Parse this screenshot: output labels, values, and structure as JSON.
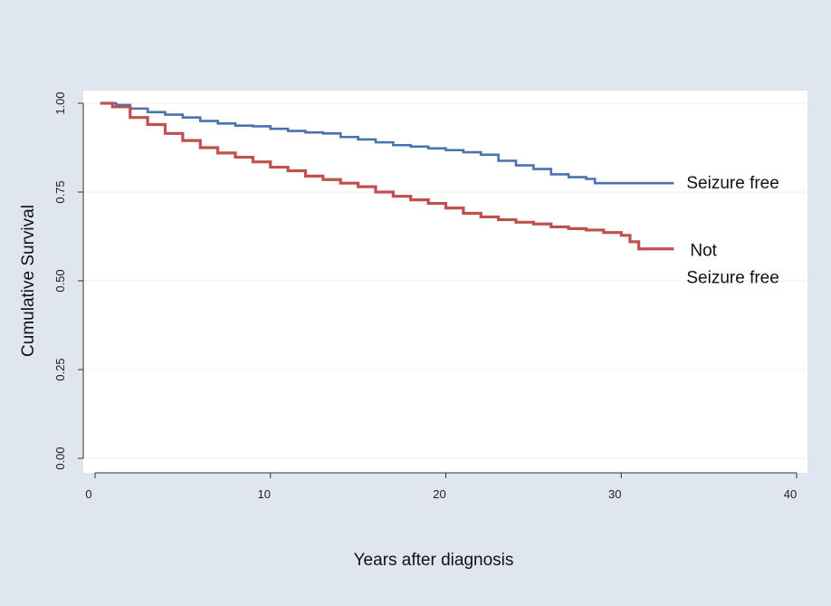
{
  "chart_data": {
    "type": "line",
    "title": "",
    "xlabel": "Years after diagnosis",
    "ylabel": "Cumulative Survival",
    "xlim": [
      0,
      40
    ],
    "ylim": [
      0,
      1
    ],
    "x_ticks": [
      0,
      10,
      20,
      30,
      40
    ],
    "x_tick_labels": [
      "0",
      "10",
      "20",
      "30",
      "40"
    ],
    "y_ticks": [
      0,
      0.25,
      0.5,
      0.75,
      1.0
    ],
    "y_tick_labels": [
      "0.00",
      "0.25",
      "0.50",
      "0.75",
      "1.00"
    ],
    "grid": true,
    "legend": "direct labels at right end of each curve",
    "series": [
      {
        "name": "Seizure free",
        "label_lines": [
          "Seizure free"
        ],
        "color": "#4a72ad",
        "x": [
          0.3,
          1.2,
          2,
          3,
          4,
          5,
          6,
          7,
          8,
          9,
          10,
          11,
          12,
          13,
          14,
          15,
          16,
          17,
          18,
          19,
          20,
          21,
          22,
          23,
          24,
          25,
          26,
          27,
          28,
          28.5,
          29,
          30,
          31,
          32,
          33
        ],
        "y": [
          1.0,
          0.995,
          0.985,
          0.975,
          0.968,
          0.96,
          0.95,
          0.943,
          0.937,
          0.935,
          0.928,
          0.922,
          0.918,
          0.915,
          0.905,
          0.898,
          0.89,
          0.882,
          0.878,
          0.873,
          0.868,
          0.862,
          0.855,
          0.838,
          0.825,
          0.815,
          0.8,
          0.792,
          0.787,
          0.775,
          0.775,
          0.775,
          0.775,
          0.775,
          0.775
        ]
      },
      {
        "name": "Not Seizure free",
        "label_lines": [
          "Not",
          "Seizure free"
        ],
        "color": "#c0504d",
        "x": [
          0.3,
          1,
          2,
          3,
          4,
          5,
          6,
          7,
          8,
          9,
          10,
          11,
          12,
          13,
          14,
          15,
          16,
          17,
          18,
          19,
          20,
          21,
          22,
          23,
          24,
          25,
          26,
          27,
          28,
          29,
          30,
          30.5,
          31,
          32,
          33
        ],
        "y": [
          1.0,
          0.99,
          0.96,
          0.94,
          0.915,
          0.895,
          0.875,
          0.86,
          0.848,
          0.835,
          0.82,
          0.81,
          0.795,
          0.785,
          0.775,
          0.765,
          0.75,
          0.738,
          0.728,
          0.718,
          0.705,
          0.69,
          0.68,
          0.672,
          0.665,
          0.66,
          0.652,
          0.647,
          0.643,
          0.636,
          0.628,
          0.61,
          0.59,
          0.59,
          0.59
        ]
      }
    ]
  }
}
